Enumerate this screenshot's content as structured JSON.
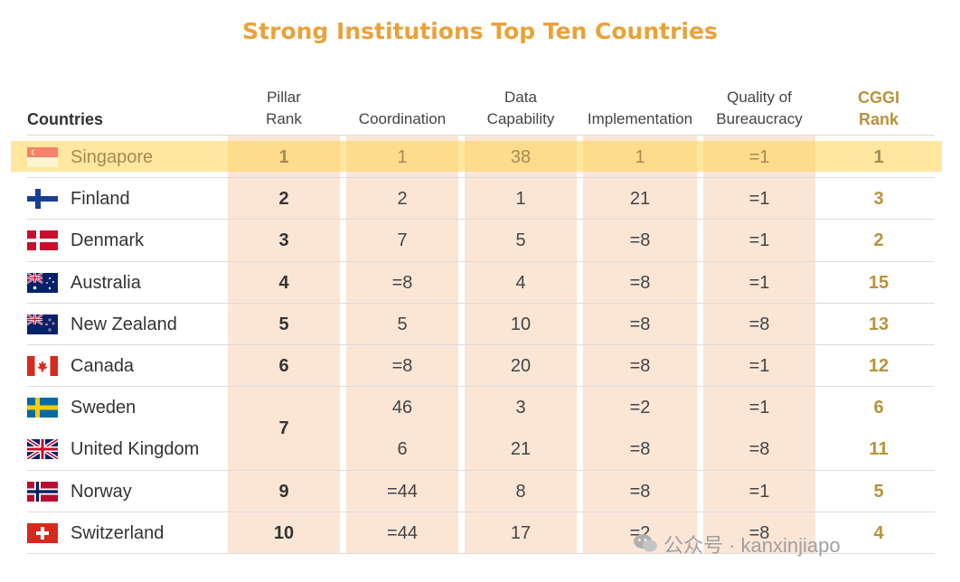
{
  "title": "Strong Institutions Top Ten Countries",
  "headers": {
    "countries": "Countries",
    "pillar_rank": [
      "Pillar",
      "Rank"
    ],
    "coordination": "Coordination",
    "data_capability": [
      "Data",
      "Capability"
    ],
    "implementation": "Implementation",
    "quality": [
      "Quality of",
      "Bureaucracy"
    ],
    "cggi_rank": [
      "CGGI",
      "Rank"
    ]
  },
  "chart_data": {
    "type": "table",
    "title": "Strong Institutions Top Ten Countries",
    "columns": [
      "Countries",
      "Pillar Rank",
      "Coordination",
      "Data Capability",
      "Implementation",
      "Quality of Bureaucracy",
      "CGGI Rank"
    ],
    "rows": [
      {
        "country": "Singapore",
        "flag": "singapore-flag",
        "pillar_rank": "1",
        "coordination": "1",
        "data_capability": "38",
        "implementation": "1",
        "quality": "=1",
        "cggi_rank": "1",
        "highlight": true
      },
      {
        "country": "Finland",
        "flag": "finland-flag",
        "pillar_rank": "2",
        "coordination": "2",
        "data_capability": "1",
        "implementation": "21",
        "quality": "=1",
        "cggi_rank": "3"
      },
      {
        "country": "Denmark",
        "flag": "denmark-flag",
        "pillar_rank": "3",
        "coordination": "7",
        "data_capability": "5",
        "implementation": "=8",
        "quality": "=1",
        "cggi_rank": "2"
      },
      {
        "country": "Australia",
        "flag": "australia-flag",
        "pillar_rank": "4",
        "coordination": "=8",
        "data_capability": "4",
        "implementation": "=8",
        "quality": "=1",
        "cggi_rank": "15"
      },
      {
        "country": "New Zealand",
        "flag": "new-zealand-flag",
        "pillar_rank": "5",
        "coordination": "5",
        "data_capability": "10",
        "implementation": "=8",
        "quality": "=8",
        "cggi_rank": "13"
      },
      {
        "country": "Canada",
        "flag": "canada-flag",
        "pillar_rank": "6",
        "coordination": "=8",
        "data_capability": "20",
        "implementation": "=8",
        "quality": "=1",
        "cggi_rank": "12"
      },
      {
        "country": "Sweden",
        "flag": "sweden-flag",
        "pillar_rank": "7",
        "coordination": "46",
        "data_capability": "3",
        "implementation": "=2",
        "quality": "=1",
        "cggi_rank": "6"
      },
      {
        "country": "United Kingdom",
        "flag": "uk-flag",
        "pillar_rank": "7",
        "coordination": "6",
        "data_capability": "21",
        "implementation": "=8",
        "quality": "=8",
        "cggi_rank": "11"
      },
      {
        "country": "Norway",
        "flag": "norway-flag",
        "pillar_rank": "9",
        "coordination": "=44",
        "data_capability": "8",
        "implementation": "=8",
        "quality": "=1",
        "cggi_rank": "5"
      },
      {
        "country": "Switzerland",
        "flag": "switzerland-flag",
        "pillar_rank": "10",
        "coordination": "=44",
        "data_capability": "17",
        "implementation": "=2",
        "quality": "=8",
        "cggi_rank": "4"
      }
    ]
  },
  "watermark": {
    "text": "公众号 · kanxinjiapo",
    "icon": "wechat-icon"
  }
}
